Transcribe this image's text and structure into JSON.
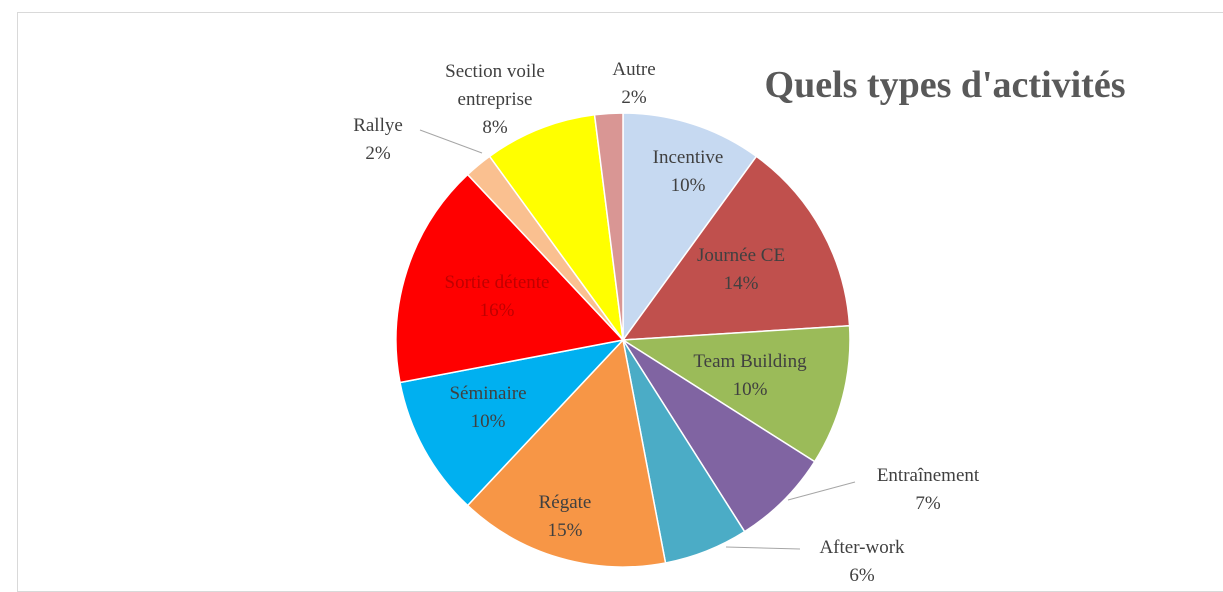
{
  "chart_data": {
    "type": "pie",
    "title": "Quels types d'activités",
    "categories": [
      "Incentive",
      "Journée CE",
      "Team Building",
      "Entraînement",
      "After-work",
      "Régate",
      "Séminaire",
      "Sortie détente",
      "Rallye",
      "Section voile entreprise",
      "Autre"
    ],
    "values": [
      10,
      14,
      10,
      7,
      6,
      15,
      10,
      16,
      2,
      8,
      2
    ],
    "value_labels": [
      "10%",
      "14%",
      "10%",
      "7%",
      "6%",
      "15%",
      "10%",
      "16%",
      "2%",
      "8%",
      "2%"
    ],
    "colors": [
      "#c6d9f1",
      "#c0504d",
      "#9bbb59",
      "#8064a2",
      "#4bacc6",
      "#f79646",
      "#00b0f0",
      "#ff0000",
      "#fac090",
      "#ffff00",
      "#d99694"
    ]
  }
}
